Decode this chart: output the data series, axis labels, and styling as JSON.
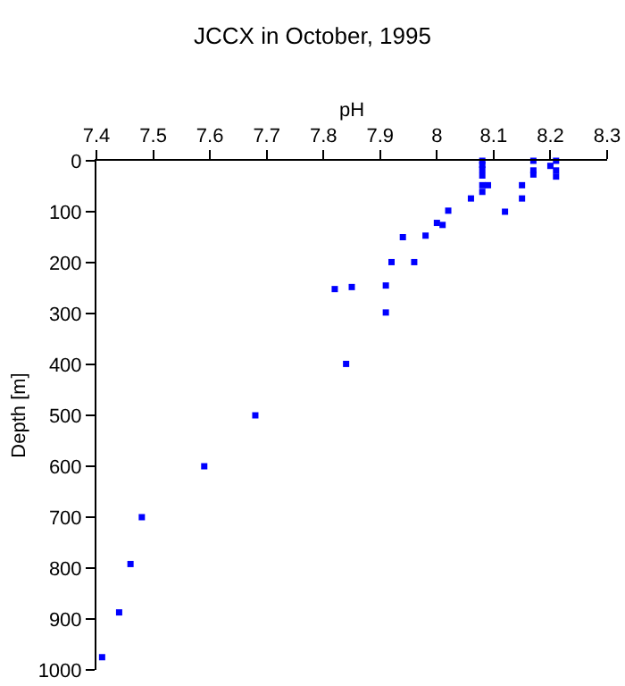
{
  "chart_data": {
    "type": "scatter",
    "title": "JCCX in October, 1995",
    "xlabel": "pH",
    "ylabel": "Depth [m]",
    "x": [
      8.08,
      8.08,
      8.08,
      8.08,
      8.08,
      8.08,
      8.09,
      8.17,
      8.17,
      8.17,
      8.2,
      8.21,
      8.21,
      8.21,
      8.15,
      8.15,
      8.06,
      8.12,
      8.02,
      8.0,
      8.01,
      7.98,
      7.96,
      7.94,
      7.92,
      7.82,
      7.85,
      7.91,
      7.91,
      7.84,
      7.68,
      7.59,
      7.48,
      7.46,
      7.44,
      7.41
    ],
    "values": [
      0,
      8,
      17,
      29,
      48,
      61,
      48,
      0,
      19,
      27,
      10,
      0,
      19,
      31,
      48,
      74,
      74,
      100,
      98,
      122,
      126,
      147,
      199,
      150,
      199,
      252,
      248,
      245,
      298,
      399,
      500,
      600,
      700,
      792,
      887,
      975
    ],
    "color": "#0000ff",
    "marker": "square",
    "xlim": [
      7.4,
      8.3
    ],
    "xticks": [
      7.4,
      7.5,
      7.6,
      7.7,
      7.8,
      7.9,
      {
        "value": 8,
        "label": "8"
      },
      8.1,
      8.2,
      8.3
    ],
    "ylim": [
      1000,
      0
    ],
    "yticks": [
      0,
      100,
      200,
      300,
      400,
      500,
      600,
      700,
      800,
      900,
      1000
    ],
    "grid": false
  }
}
